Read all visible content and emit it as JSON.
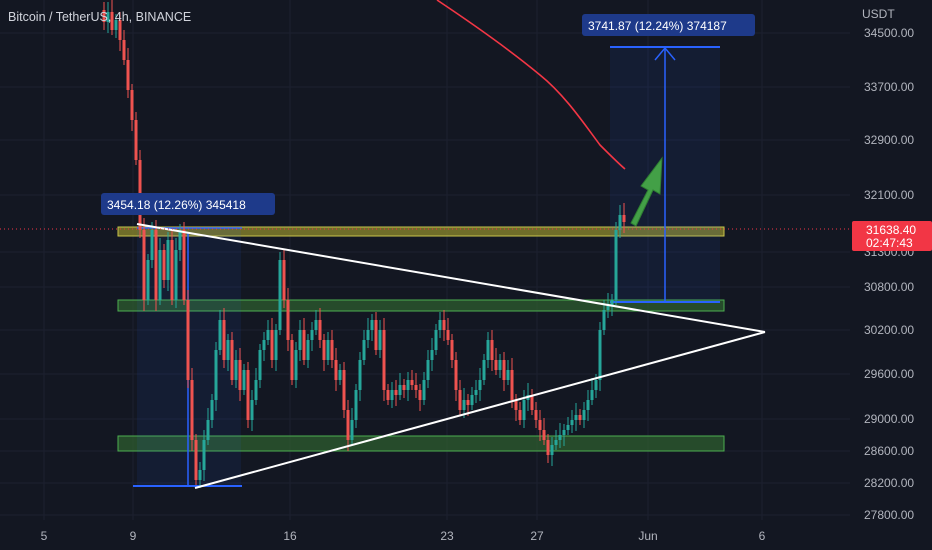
{
  "header": {
    "title": "Bitcoin / TetherUS, 4h, BINANCE",
    "currency": "USDT"
  },
  "price_tag": {
    "price": "31638.40",
    "countdown": "02:47:43",
    "color": "#f23645"
  },
  "measure_labels": {
    "left": "3454.18 (12.26%) 345418",
    "right": "3741.87 (12.24%) 374187"
  },
  "colors": {
    "background": "#131722",
    "up": "#26a69a",
    "down": "#ef5350",
    "zone_green": "#4caf50",
    "zone_yellow": "#c9c44a",
    "measure_blue": "#2962ff",
    "ma_line": "#f23645",
    "trend_lines": "#ffffff",
    "label_bg": "#1e3a8a"
  },
  "chart_data": {
    "type": "candlestick",
    "title": "Bitcoin / TetherUS, 4h, BINANCE",
    "y_unit": "USDT",
    "ylim": [
      27700,
      34800
    ],
    "x_ticks": [
      "5",
      "9",
      "16",
      "23",
      "27",
      "Jun",
      "6"
    ],
    "y_ticks": [
      27800,
      28200,
      28600,
      29000,
      29600,
      30200,
      30800,
      31300,
      32100,
      32900,
      33700,
      34500
    ],
    "last_price": 31638.4,
    "zones": [
      {
        "low": 31500,
        "high": 31600,
        "color": "yellow"
      },
      {
        "low": 30650,
        "high": 30750,
        "color": "green"
      },
      {
        "low": 28650,
        "high": 28800,
        "color": "green"
      }
    ],
    "measurements": [
      {
        "label": "3454.18 (12.26%) 345418",
        "from": 28200,
        "to": 31650
      },
      {
        "label": "3741.87 (12.24%) 374187",
        "from": 30700,
        "to": 34420
      }
    ]
  }
}
